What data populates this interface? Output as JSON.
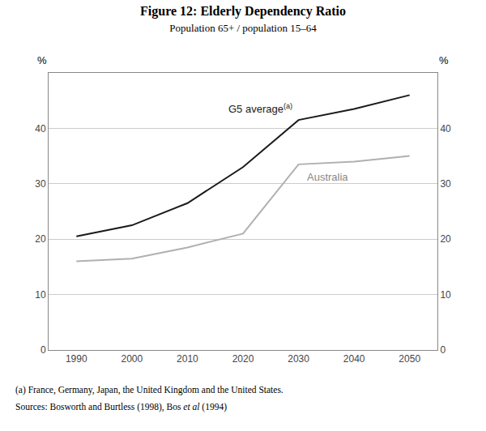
{
  "chart_data": {
    "type": "line",
    "title": "Figure 12: Elderly Dependency Ratio",
    "subtitle": "Population 65+ / population 15–64",
    "x": [
      1990,
      2000,
      2010,
      2020,
      2030,
      2040,
      2050
    ],
    "series": [
      {
        "name": "G5 average",
        "color": "#1a1a1a",
        "values": [
          20.5,
          22.5,
          26.5,
          33.0,
          41.5,
          43.5,
          46.0
        ]
      },
      {
        "name": "Australia",
        "color": "#b0b0b0",
        "values": [
          16.0,
          16.5,
          18.5,
          21.0,
          33.5,
          34.0,
          35.0
        ]
      }
    ],
    "annotations": [
      {
        "series": "G5 average",
        "text": "(a)"
      }
    ],
    "ylabel": "%",
    "y2label": "%",
    "xlim": [
      1985,
      2055
    ],
    "xticks": [
      1990,
      2000,
      2010,
      2020,
      2030,
      2040,
      2050
    ],
    "ylim": [
      0,
      50
    ],
    "yticks": [
      0,
      10,
      20,
      30,
      40
    ],
    "y2lim": [
      0,
      50
    ],
    "y2ticks": [
      0,
      10,
      20,
      30,
      40
    ],
    "grid": "y",
    "footnotes": [
      [
        {
          "text": "(a) France, Germany, Japan, the United Kingdom and the United States."
        }
      ],
      [
        {
          "text": "Sources: Bosworth and Burtless (1998), Bos "
        },
        {
          "text": "et al",
          "italic": true
        },
        {
          "text": " (1994)"
        }
      ]
    ]
  }
}
